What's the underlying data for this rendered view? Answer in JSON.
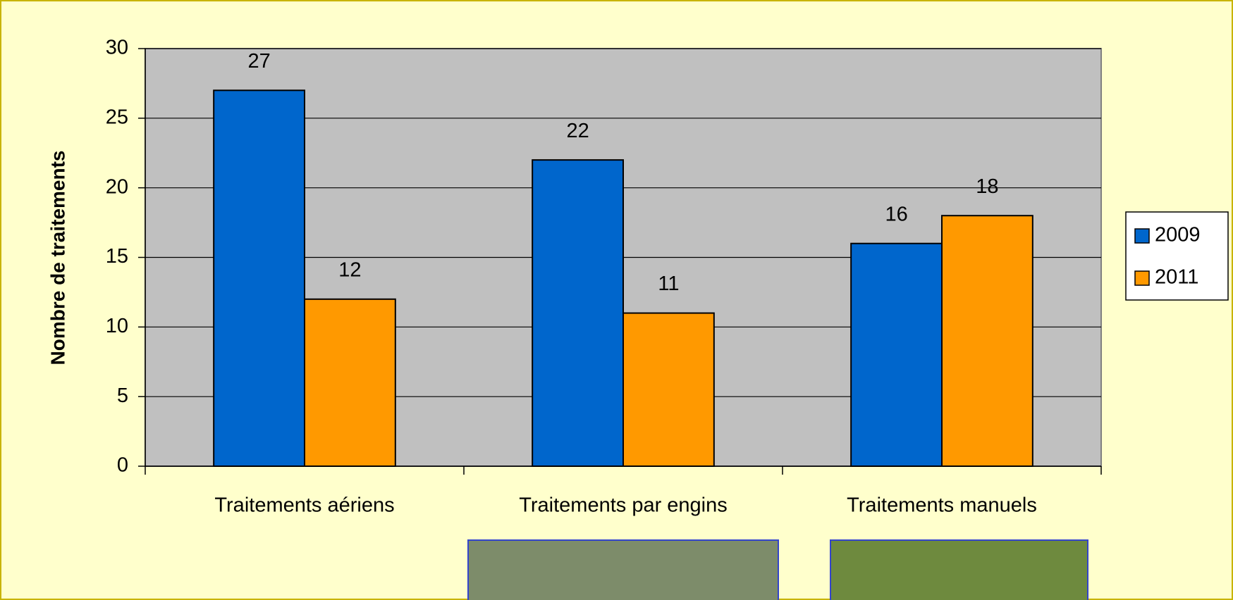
{
  "chart_data": {
    "type": "bar",
    "y_label": "Nombre de traitements",
    "categories": [
      "Traitements aériens",
      "Traitements par engins",
      "Traitements manuels"
    ],
    "series": [
      {
        "name": "2009",
        "color": "#0066cc",
        "values": [
          27,
          22,
          16
        ]
      },
      {
        "name": "2011",
        "color": "#ff9900",
        "values": [
          12,
          11,
          18
        ]
      }
    ],
    "ylim": [
      0,
      30
    ],
    "yticks": [
      0,
      5,
      10,
      15,
      20,
      25,
      30
    ],
    "grid": true,
    "legend": "right"
  }
}
